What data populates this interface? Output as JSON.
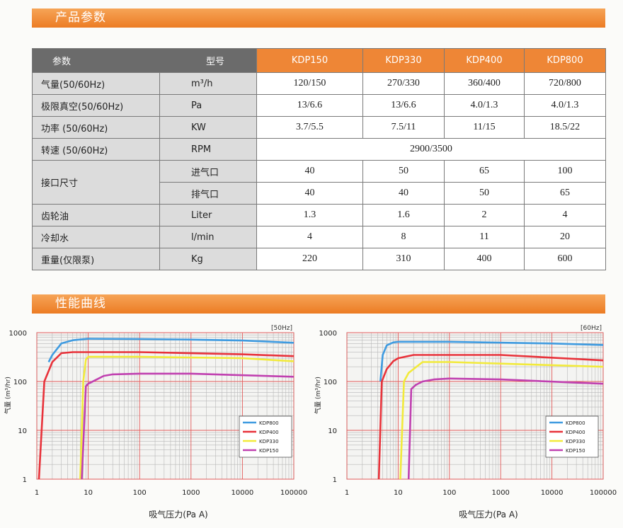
{
  "header1": "产品参数",
  "table": {
    "corner_left": "参数",
    "corner_right": "型号",
    "models": [
      "KDP150",
      "KDP330",
      "KDP400",
      "KDP800"
    ],
    "rows": [
      {
        "label": "气量(50/60Hz)",
        "unit": "m³/h",
        "values": [
          "120/150",
          "270/330",
          "360/400",
          "720/800"
        ]
      },
      {
        "label": "极限真空(50/60Hz)",
        "unit": "Pa",
        "values": [
          "13/6.6",
          "13/6.6",
          "4.0/1.3",
          "4.0/1.3"
        ]
      },
      {
        "label": "功率 (50/60Hz)",
        "unit": "KW",
        "values": [
          "3.7/5.5",
          "7.5/11",
          "11/15",
          "18.5/22"
        ]
      },
      {
        "label": "转速 (50/60Hz)",
        "unit": "RPM",
        "values": [
          "2900/3500"
        ]
      },
      {
        "label": "接口尺寸",
        "sub": [
          {
            "unit": "进气口",
            "values": [
              "40",
              "50",
              "65",
              "100"
            ]
          },
          {
            "unit": "排气口",
            "values": [
              "40",
              "40",
              "50",
              "65"
            ]
          }
        ]
      },
      {
        "label": "齿轮油",
        "unit": "Liter",
        "values": [
          "1.3",
          "1.6",
          "2",
          "4"
        ]
      },
      {
        "label": "冷却水",
        "unit": "l/min",
        "values": [
          "4",
          "8",
          "11",
          "20"
        ]
      },
      {
        "label": "重量(仅限泵)",
        "unit": "Kg",
        "values": [
          "220",
          "310",
          "400",
          "600"
        ]
      }
    ]
  },
  "header2": "性能曲线",
  "chart_data": [
    {
      "type": "line",
      "tag": "[50Hz]",
      "xlabel": "吸气压力(Pa A)",
      "ylabel": "气量 (m³/hr)",
      "log_x": true,
      "log_y": true,
      "grid": true,
      "xlim": [
        1,
        100000
      ],
      "xticks": [
        1,
        10,
        100,
        1000,
        10000,
        100000
      ],
      "ylim": [
        1,
        1000
      ],
      "yticks": [
        1,
        10,
        100,
        1000
      ],
      "series": [
        {
          "name": "KDP800",
          "color": "#3f9be0",
          "x": [
            1.7,
            2,
            3,
            5,
            10,
            100,
            1000,
            10000,
            100000
          ],
          "values": [
            250,
            350,
            600,
            700,
            750,
            740,
            720,
            690,
            620
          ]
        },
        {
          "name": "KDP400",
          "color": "#e8323a",
          "x": [
            1.1,
            1.4,
            2,
            3,
            5,
            100,
            10000,
            100000
          ],
          "values": [
            1,
            100,
            250,
            380,
            400,
            400,
            360,
            330
          ]
        },
        {
          "name": "KDP330",
          "color": "#f2ea3a",
          "x": [
            7,
            8,
            9,
            10,
            100,
            10000,
            100000
          ],
          "values": [
            1,
            100,
            280,
            320,
            320,
            300,
            260
          ]
        },
        {
          "name": "KDP150",
          "color": "#c040b0",
          "x": [
            7.5,
            9,
            10,
            20,
            30,
            100,
            1000,
            100000
          ],
          "values": [
            1,
            80,
            90,
            130,
            140,
            145,
            145,
            125
          ]
        }
      ]
    },
    {
      "type": "line",
      "tag": "[60Hz]",
      "xlabel": "吸气压力(Pa A)",
      "ylabel": "气量 (m³/hr)",
      "log_x": true,
      "log_y": true,
      "grid": true,
      "xlim": [
        1,
        100000
      ],
      "xticks": [
        1,
        10,
        100,
        1000,
        10000,
        100000
      ],
      "ylim": [
        1,
        1000
      ],
      "yticks": [
        1,
        10,
        100,
        1000
      ],
      "series": [
        {
          "name": "KDP800",
          "color": "#3f9be0",
          "x": [
            4.5,
            5,
            6,
            8,
            10,
            100,
            10000,
            100000
          ],
          "values": [
            100,
            350,
            550,
            630,
            650,
            650,
            600,
            560
          ]
        },
        {
          "name": "KDP400",
          "color": "#e8323a",
          "x": [
            4.2,
            4.8,
            6,
            8,
            10,
            20,
            1000,
            100000
          ],
          "values": [
            1,
            100,
            180,
            260,
            300,
            350,
            350,
            270
          ]
        },
        {
          "name": "KDP330",
          "color": "#f2ea3a",
          "x": [
            11,
            13,
            16,
            20,
            30,
            100,
            100000
          ],
          "values": [
            1,
            100,
            150,
            180,
            250,
            250,
            200
          ]
        },
        {
          "name": "KDP150",
          "color": "#c040b0",
          "x": [
            16,
            18,
            22,
            30,
            50,
            100,
            1000,
            100000
          ],
          "values": [
            1,
            70,
            85,
            100,
            110,
            115,
            110,
            90
          ]
        }
      ]
    }
  ]
}
